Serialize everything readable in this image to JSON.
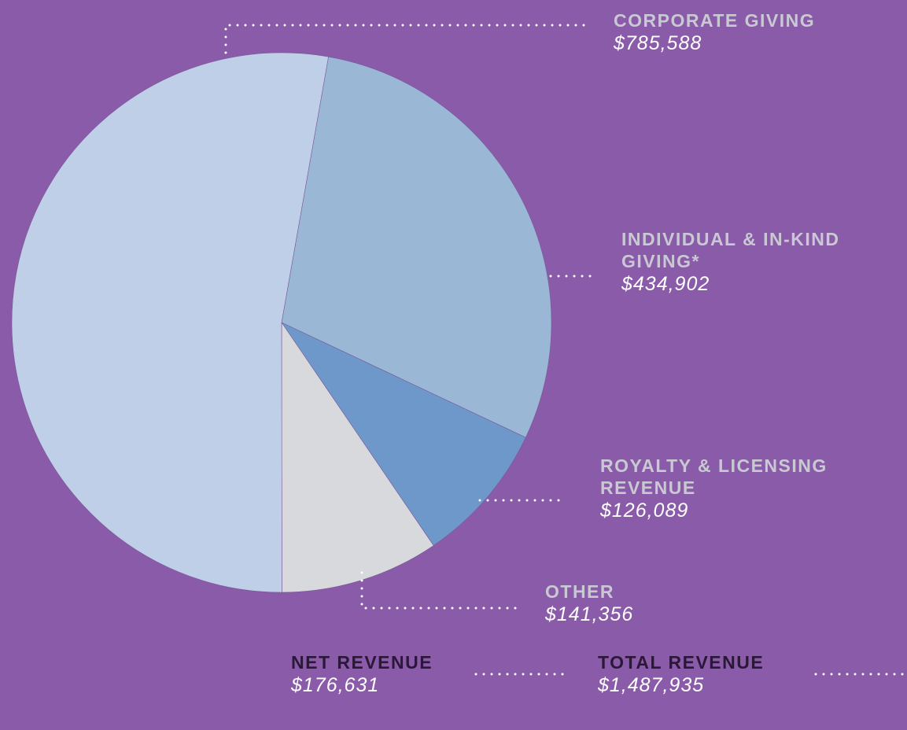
{
  "chart_data": {
    "type": "pie",
    "categories": [
      "INDIVIDUAL & IN-KIND GIVING*",
      "ROYALTY & LICENSING REVENUE",
      "OTHER",
      "CORPORATE GIVING"
    ],
    "values": [
      434902,
      126089,
      141356,
      785588
    ],
    "value_labels": [
      "$434,902",
      "$126,089",
      "$141,356",
      "$785,588"
    ],
    "colors": [
      "#9ab8d6",
      "#6e98c9",
      "#d8d9dc",
      "#c0cfe8"
    ],
    "annotations": [
      {
        "label": "NET REVENUE",
        "value": "$176,631"
      },
      {
        "label": "TOTAL REVENUE",
        "value": "$1,487,935"
      }
    ]
  }
}
